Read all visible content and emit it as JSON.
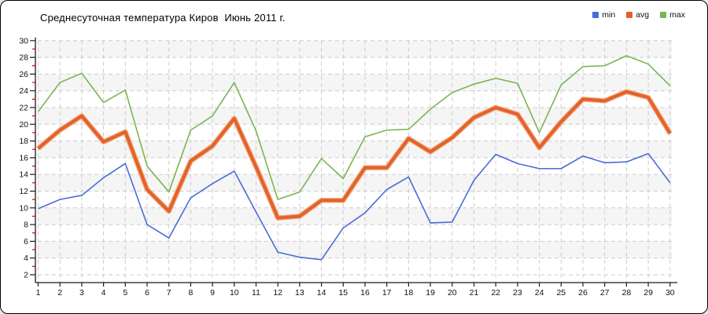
{
  "window": {
    "background": "#ffffff",
    "border_color": "#000000"
  },
  "title": "Среднесуточная температура Киров  Июнь 2011 г.",
  "legend": {
    "position": "top-right"
  },
  "chart_data": {
    "type": "line",
    "title": "Среднесуточная температура Киров  Июнь 2011 г.",
    "xlabel": "",
    "ylabel": "",
    "x": [
      1,
      2,
      3,
      4,
      5,
      6,
      7,
      8,
      9,
      10,
      11,
      12,
      13,
      14,
      15,
      16,
      17,
      18,
      19,
      20,
      21,
      22,
      23,
      24,
      25,
      26,
      27,
      28,
      29,
      30
    ],
    "series": [
      {
        "name": "min",
        "color": "#4a6bd8",
        "width": 1.6,
        "values": [
          9.9,
          11.0,
          11.5,
          13.6,
          15.3,
          8.0,
          6.4,
          11.2,
          12.9,
          14.4,
          9.5,
          4.7,
          4.1,
          3.8,
          7.6,
          9.4,
          12.2,
          13.7,
          8.2,
          8.3,
          13.3,
          16.4,
          15.3,
          14.7,
          14.7,
          16.2,
          15.4,
          15.5,
          16.5,
          13.0
        ]
      },
      {
        "name": "avg",
        "color": "#e2622b",
        "halo": "#f3ab80",
        "width": 4,
        "values": [
          17.1,
          19.3,
          21.0,
          17.9,
          19.1,
          12.2,
          9.6,
          15.6,
          17.4,
          20.7,
          14.9,
          8.8,
          9.0,
          10.9,
          10.9,
          14.8,
          14.8,
          18.3,
          16.7,
          18.4,
          20.8,
          22.0,
          21.2,
          17.2,
          20.3,
          23.0,
          22.8,
          23.9,
          23.2,
          18.9
        ]
      },
      {
        "name": "max",
        "color": "#7ab553",
        "width": 1.6,
        "values": [
          21.5,
          25.0,
          26.1,
          22.6,
          24.1,
          15.0,
          11.9,
          19.3,
          21.0,
          25.0,
          19.2,
          11.0,
          11.9,
          15.9,
          13.5,
          18.5,
          19.3,
          19.4,
          21.8,
          23.8,
          24.8,
          25.5,
          24.9,
          19.0,
          24.7,
          26.9,
          27.0,
          28.2,
          27.2,
          24.6
        ]
      }
    ],
    "ylim": [
      2,
      30
    ],
    "ytick_step": 2,
    "yticks": [
      2,
      4,
      6,
      8,
      10,
      12,
      14,
      16,
      18,
      20,
      22,
      24,
      26,
      28,
      30
    ],
    "grid": "dashed",
    "grid_color": "#cccccc",
    "band_color": "#f5f5f5",
    "axis_color": "#1a1a1a",
    "tick_label_color": "#111111",
    "minor_tick_color": "#cc0000",
    "legend_position": "top-right"
  }
}
